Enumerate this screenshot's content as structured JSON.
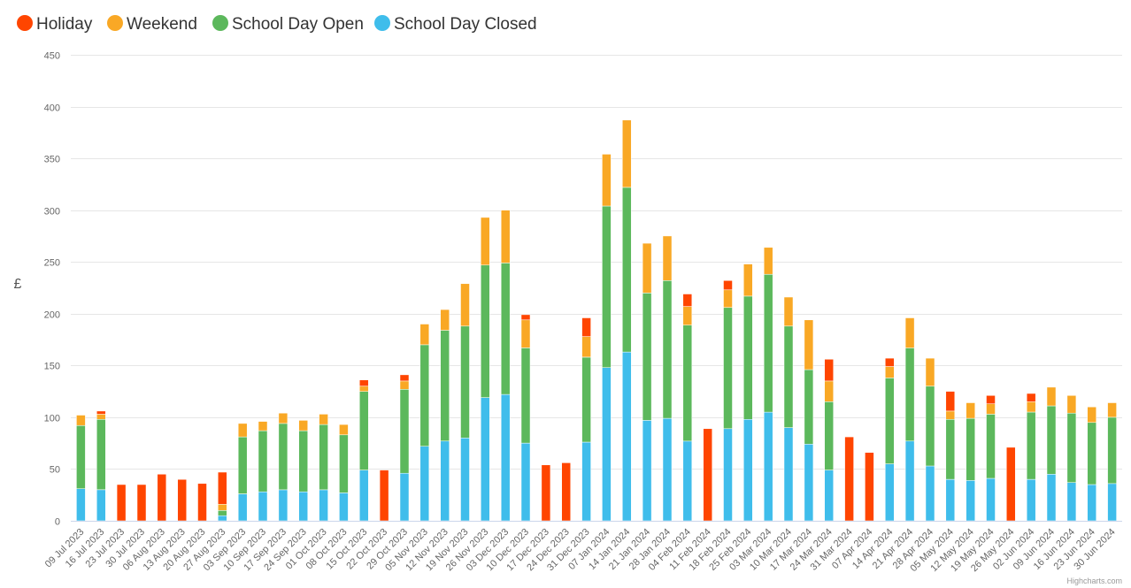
{
  "chart_data": {
    "type": "bar",
    "stacked": true,
    "ylabel": "£",
    "ylim": [
      0,
      450
    ],
    "yticks": [
      0,
      50,
      100,
      150,
      200,
      250,
      300,
      350,
      400,
      450
    ],
    "grid": true,
    "legend_position": "top-left",
    "credit": "Highcharts.com",
    "categories": [
      "09 Jul 2023",
      "16 Jul 2023",
      "23 Jul 2023",
      "30 Jul 2023",
      "06 Aug 2023",
      "13 Aug 2023",
      "20 Aug 2023",
      "27 Aug 2023",
      "03 Sep 2023",
      "10 Sep 2023",
      "17 Sep 2023",
      "24 Sep 2023",
      "01 Oct 2023",
      "08 Oct 2023",
      "15 Oct 2023",
      "22 Oct 2023",
      "29 Oct 2023",
      "05 Nov 2023",
      "12 Nov 2023",
      "19 Nov 2023",
      "26 Nov 2023",
      "03 Dec 2023",
      "10 Dec 2023",
      "17 Dec 2023",
      "24 Dec 2023",
      "31 Dec 2023",
      "07 Jan 2024",
      "14 Jan 2024",
      "21 Jan 2024",
      "28 Jan 2024",
      "04 Feb 2024",
      "11 Feb 2024",
      "18 Feb 2024",
      "25 Feb 2024",
      "03 Mar 2024",
      "10 Mar 2024",
      "17 Mar 2024",
      "24 Mar 2024",
      "31 Mar 2024",
      "07 Apr 2024",
      "14 Apr 2024",
      "21 Apr 2024",
      "28 Apr 2024",
      "05 May 2024",
      "12 May 2024",
      "19 May 2024",
      "26 May 2024",
      "02 Jun 2024",
      "09 Jun 2024",
      "16 Jun 2024",
      "23 Jun 2024",
      "30 Jun 2024"
    ],
    "series": [
      {
        "name": "School Day Closed",
        "color": "#3fbdeb",
        "values": [
          31,
          30,
          0,
          0,
          0,
          0,
          0,
          5,
          26,
          28,
          30,
          28,
          30,
          27,
          49,
          0,
          46,
          72,
          77,
          80,
          119,
          122,
          75,
          0,
          0,
          76,
          148,
          163,
          97,
          99,
          77,
          0,
          89,
          98,
          105,
          90,
          74,
          49,
          0,
          0,
          55,
          77,
          53,
          40,
          39,
          41,
          0,
          40,
          45,
          37,
          35,
          36
        ]
      },
      {
        "name": "School Day Open",
        "color": "#5cb85c",
        "values": [
          61,
          68,
          0,
          0,
          0,
          0,
          0,
          5,
          55,
          59,
          64,
          59,
          63,
          56,
          76,
          0,
          81,
          98,
          107,
          108,
          128,
          127,
          92,
          0,
          0,
          82,
          156,
          159,
          123,
          133,
          112,
          0,
          117,
          119,
          133,
          98,
          72,
          66,
          0,
          0,
          83,
          90,
          77,
          58,
          60,
          62,
          0,
          65,
          66,
          67,
          60,
          64
        ]
      },
      {
        "name": "Weekend",
        "color": "#f9a825",
        "values": [
          10,
          5,
          0,
          0,
          0,
          0,
          0,
          6,
          13,
          9,
          10,
          10,
          10,
          10,
          5,
          0,
          8,
          20,
          20,
          41,
          46,
          51,
          27,
          0,
          0,
          20,
          50,
          65,
          48,
          43,
          18,
          0,
          17,
          31,
          26,
          28,
          48,
          20,
          0,
          0,
          11,
          29,
          27,
          8,
          15,
          10,
          0,
          10,
          18,
          17,
          15,
          14
        ]
      },
      {
        "name": "Holiday",
        "color": "#ff4500",
        "values": [
          0,
          3,
          35,
          35,
          45,
          40,
          36,
          31,
          0,
          0,
          0,
          0,
          0,
          0,
          6,
          49,
          6,
          0,
          0,
          0,
          0,
          0,
          5,
          54,
          56,
          18,
          0,
          0,
          0,
          0,
          12,
          89,
          9,
          0,
          0,
          0,
          0,
          21,
          81,
          66,
          8,
          0,
          0,
          19,
          0,
          8,
          71,
          8,
          0,
          0,
          0,
          0
        ]
      }
    ],
    "legend_order": [
      "Holiday",
      "Weekend",
      "School Day Open",
      "School Day Closed"
    ]
  }
}
